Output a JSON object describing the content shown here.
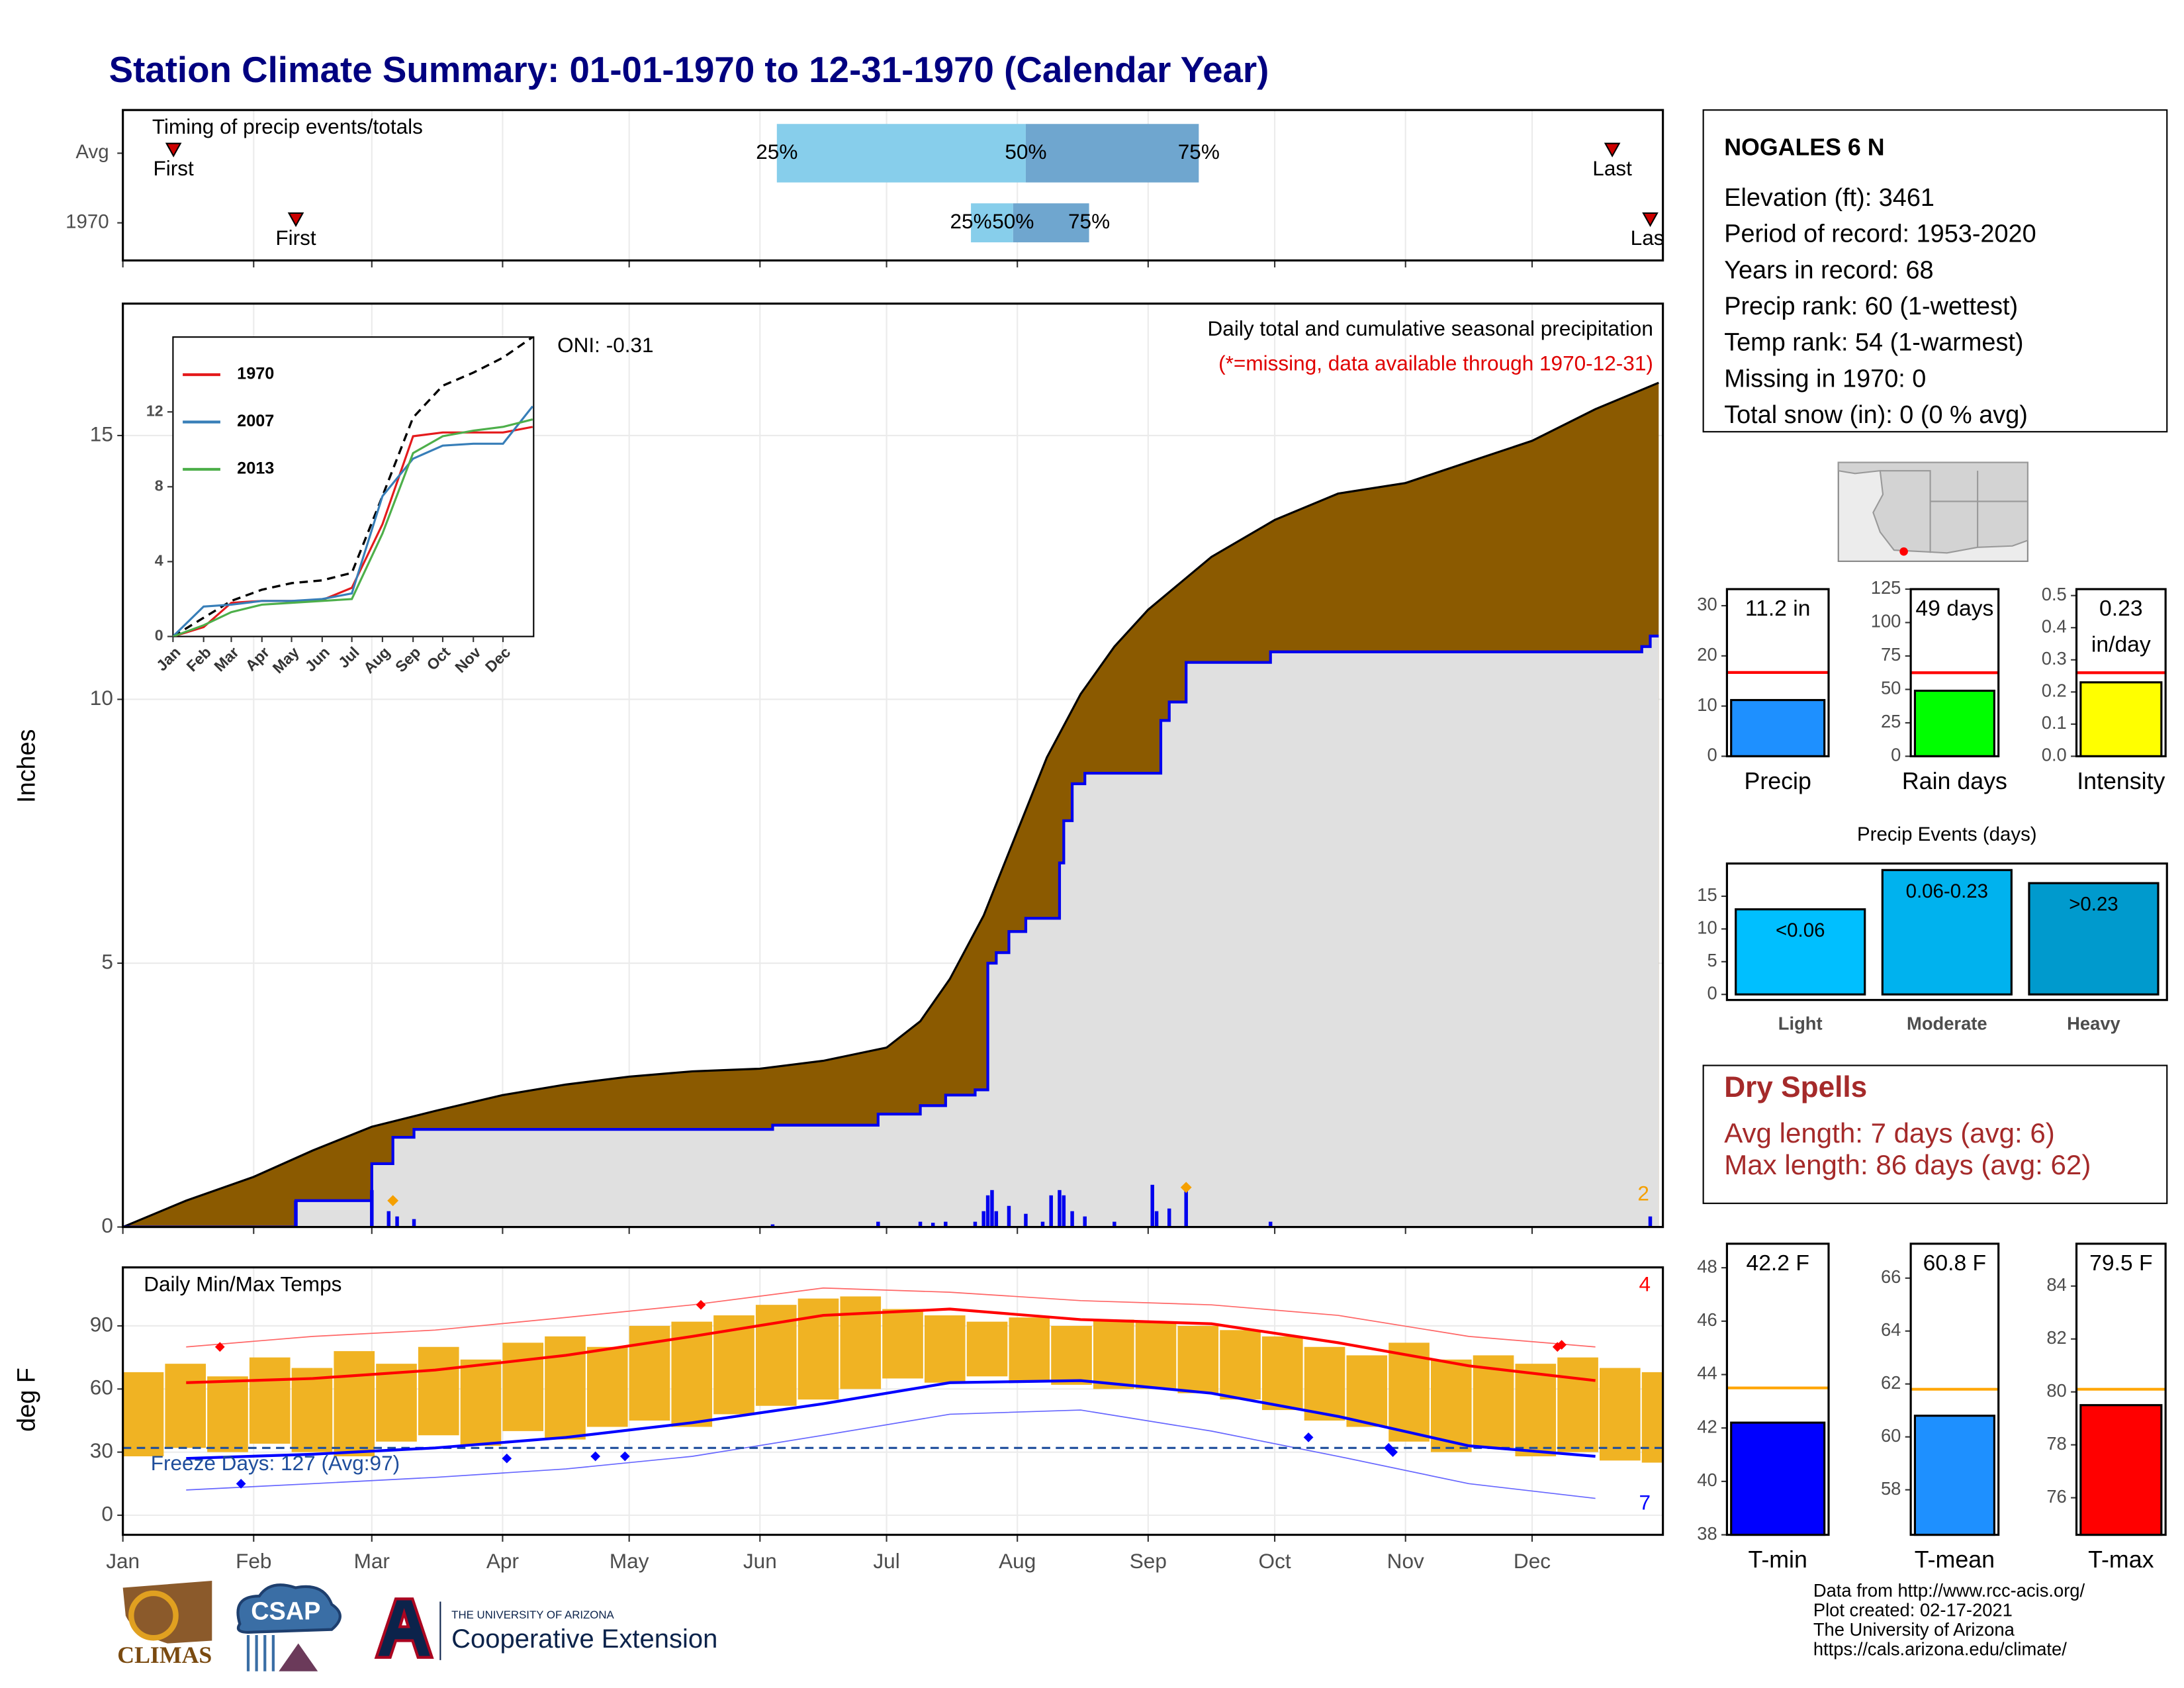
{
  "title": "Station Climate Summary: 01-01-1970 to 12-31-1970 (Calendar Year)",
  "chart_data": [
    {
      "type": "timeline",
      "title": "Timing of precip events/totals",
      "categories": [
        "Avg",
        "1970"
      ],
      "first": [
        13,
        42
      ],
      "last": [
        354,
        363
      ],
      "first_label": "First",
      "last_label": "Last",
      "quartiles": [
        [
          156,
          215,
          256
        ],
        [
          202,
          212,
          230
        ]
      ],
      "quartile_labels": [
        "25%",
        "50%",
        "75%"
      ],
      "colors": [
        "#87ceeb",
        "#6fa6cf"
      ],
      "marker_color": "#cc0000",
      "xlim": [
        1,
        366
      ],
      "xticks": [
        1,
        32,
        60,
        91,
        121,
        152,
        182,
        213,
        244,
        274,
        305,
        335
      ],
      "grid": true
    },
    {
      "type": "cumulative",
      "annotation": "Daily total and cumulative seasonal precipitation",
      "note": "(*=missing, data available through 1970-12-31)",
      "oni": "ONI: -0.31",
      "y_label": "Inches",
      "extreme_count": 2,
      "xlim": [
        1,
        366
      ],
      "xticks": [
        1,
        32,
        60,
        91,
        121,
        152,
        182,
        213,
        244,
        274,
        305,
        335
      ],
      "ylim": [
        0,
        17.5
      ],
      "yticks": [
        0,
        5,
        10,
        15
      ],
      "grid": true,
      "average": {
        "color": "#8b5a00",
        "x": [
          1,
          16,
          32,
          46,
          60,
          75,
          91,
          106,
          121,
          136,
          152,
          167,
          182,
          190,
          197,
          205,
          213,
          220,
          228,
          236,
          244,
          259,
          274,
          289,
          305,
          320,
          335,
          350,
          365
        ],
        "values": [
          0,
          0.5,
          0.95,
          1.45,
          1.9,
          2.2,
          2.5,
          2.7,
          2.85,
          2.95,
          3.0,
          3.15,
          3.4,
          3.9,
          4.7,
          5.9,
          7.5,
          8.9,
          10.1,
          11.0,
          11.7,
          12.7,
          13.4,
          13.9,
          14.1,
          14.5,
          14.9,
          15.5,
          16.0
        ]
      },
      "observed": {
        "color": "#0000ee",
        "fill": "#e0e0e0",
        "x": [
          1,
          42,
          60,
          65,
          70,
          155,
          180,
          190,
          196,
          203,
          206,
          208,
          211,
          215,
          223,
          224,
          226,
          229,
          247,
          249,
          253,
          273,
          361,
          363,
          365
        ],
        "values": [
          0,
          0.5,
          1.2,
          1.7,
          1.85,
          1.93,
          2.14,
          2.3,
          2.5,
          2.6,
          5.0,
          5.2,
          5.6,
          5.85,
          6.9,
          7.7,
          8.4,
          8.6,
          9.6,
          9.95,
          10.7,
          10.9,
          11.0,
          11.2,
          11.2
        ]
      },
      "daily": {
        "color": "#0000ee",
        "x": [
          42,
          60,
          64,
          66,
          70,
          155,
          180,
          190,
          193,
          196,
          203,
          205,
          206,
          207,
          208,
          211,
          215,
          219,
          221,
          223,
          224,
          226,
          229,
          236,
          245,
          246,
          249,
          253,
          273,
          363
        ],
        "values": [
          0.5,
          0.7,
          0.3,
          0.2,
          0.15,
          0.05,
          0.1,
          0.1,
          0.08,
          0.1,
          0.1,
          0.3,
          0.6,
          0.7,
          0.3,
          0.4,
          0.25,
          0.1,
          0.6,
          0.7,
          0.6,
          0.3,
          0.2,
          0.1,
          0.8,
          0.3,
          0.35,
          0.7,
          0.1,
          0.2
        ]
      },
      "extremes": {
        "color": "#f5a000",
        "x": [
          65,
          253
        ],
        "values": [
          0.5,
          0.75
        ]
      }
    },
    {
      "type": "line",
      "xlim": [
        1,
        366
      ],
      "xticks": [
        {
          "value": 1,
          "label": "Jan"
        },
        {
          "value": 32,
          "label": "Feb"
        },
        {
          "value": 60,
          "label": "Mar"
        },
        {
          "value": 91,
          "label": "Apr"
        },
        {
          "value": 121,
          "label": "May"
        },
        {
          "value": 152,
          "label": "Jun"
        },
        {
          "value": 182,
          "label": "Jul"
        },
        {
          "value": 213,
          "label": "Aug"
        },
        {
          "value": 244,
          "label": "Sep"
        },
        {
          "value": 274,
          "label": "Oct"
        },
        {
          "value": 305,
          "label": "Nov"
        },
        {
          "value": 335,
          "label": "Dec"
        }
      ],
      "ylim": [
        0,
        16
      ],
      "yticks": [
        0,
        4,
        8,
        12
      ],
      "x": [
        1,
        32,
        60,
        91,
        121,
        152,
        182,
        213,
        244,
        274,
        305,
        335,
        365
      ],
      "series": [
        {
          "name": "1970",
          "color": "#e41a1c",
          "values": [
            0,
            0.5,
            1.8,
            1.9,
            1.9,
            1.95,
            2.6,
            6.0,
            10.7,
            10.9,
            10.9,
            10.9,
            11.2
          ]
        },
        {
          "name": "2007",
          "color": "#377eb8",
          "values": [
            0,
            1.6,
            1.7,
            1.9,
            1.9,
            2.0,
            2.3,
            7.5,
            9.5,
            10.2,
            10.3,
            10.3,
            12.3
          ]
        },
        {
          "name": "2013",
          "color": "#4daf4a",
          "values": [
            0,
            0.6,
            1.3,
            1.7,
            1.8,
            1.9,
            2.0,
            5.5,
            9.8,
            10.7,
            11.0,
            11.2,
            11.6
          ]
        }
      ],
      "average": {
        "color": "#000000",
        "values": [
          0,
          1.0,
          1.9,
          2.5,
          2.85,
          3.0,
          3.4,
          7.5,
          11.7,
          13.4,
          14.1,
          14.9,
          16.0
        ]
      }
    },
    {
      "type": "range-bar",
      "title": "Daily Min/Max Temps",
      "y_label": "deg F",
      "freeze_label": "Freeze Days: 127 (Avg:97)",
      "freeze_line": 32,
      "freeze_color": "#1f4e9c",
      "record_high_count": 4,
      "record_low_count": 7,
      "xlim": [
        1,
        366
      ],
      "xticks": [
        {
          "value": 1,
          "label": "Jan"
        },
        {
          "value": 32,
          "label": "Feb"
        },
        {
          "value": 60,
          "label": "Mar"
        },
        {
          "value": 91,
          "label": "Apr"
        },
        {
          "value": 121,
          "label": "May"
        },
        {
          "value": 152,
          "label": "Jun"
        },
        {
          "value": 182,
          "label": "Jul"
        },
        {
          "value": 213,
          "label": "Aug"
        },
        {
          "value": 244,
          "label": "Sep"
        },
        {
          "value": 274,
          "label": "Oct"
        },
        {
          "value": 305,
          "label": "Nov"
        },
        {
          "value": 335,
          "label": "Dec"
        }
      ],
      "ylim": [
        -9.3,
        117.8
      ],
      "yticks": [
        0,
        30,
        60,
        90
      ],
      "grid": true,
      "bar_color": "#f0b323",
      "x": [
        1,
        11,
        21,
        31,
        41,
        51,
        61,
        71,
        81,
        91,
        101,
        111,
        121,
        131,
        141,
        151,
        161,
        171,
        181,
        191,
        201,
        211,
        221,
        231,
        241,
        251,
        261,
        271,
        281,
        291,
        301,
        311,
        321,
        331,
        341,
        351,
        361
      ],
      "max": [
        68,
        72,
        66,
        75,
        70,
        78,
        72,
        80,
        74,
        82,
        85,
        80,
        90,
        92,
        95,
        100,
        103,
        104,
        98,
        95,
        92,
        94,
        90,
        93,
        92,
        90,
        88,
        85,
        80,
        76,
        82,
        74,
        76,
        72,
        75,
        70,
        68
      ],
      "min": [
        28,
        32,
        30,
        34,
        30,
        28,
        35,
        38,
        33,
        40,
        36,
        42,
        45,
        42,
        48,
        52,
        55,
        60,
        65,
        63,
        66,
        64,
        62,
        60,
        60,
        58,
        55,
        50,
        45,
        42,
        35,
        30,
        32,
        28,
        30,
        26,
        25
      ],
      "normals": {
        "x": [
          16,
          46,
          75,
          106,
          136,
          167,
          197,
          228,
          259,
          289,
          320,
          350
        ],
        "max": [
          63,
          65,
          69,
          76,
          85,
          95,
          98,
          93,
          91,
          82,
          71,
          64
        ],
        "min": [
          27,
          29,
          32,
          37,
          44,
          53,
          63,
          64,
          58,
          47,
          33,
          28
        ],
        "record_max": [
          80,
          85,
          88,
          94,
          100,
          108,
          106,
          102,
          100,
          95,
          85,
          80
        ],
        "record_min": [
          12,
          15,
          18,
          22,
          28,
          38,
          48,
          50,
          40,
          28,
          15,
          8
        ]
      },
      "record_highs": {
        "x": [
          24,
          138,
          341,
          342
        ],
        "values": [
          80,
          100,
          80,
          81
        ]
      },
      "record_lows": {
        "x": [
          29,
          92,
          113,
          120,
          282,
          301,
          302
        ],
        "values": [
          15,
          27,
          28,
          28,
          37,
          32,
          30
        ]
      }
    },
    {
      "type": "bar",
      "categories": [
        "Precip"
      ],
      "values": [
        11.2
      ],
      "value_labels": [
        "11.2 in"
      ],
      "average": 16.7,
      "ylim": [
        0,
        33.3
      ],
      "yticks": [
        0,
        10,
        20,
        30
      ],
      "color": "#1e90ff",
      "avg_color": "#ff0000"
    },
    {
      "type": "bar",
      "categories": [
        "Rain days"
      ],
      "values": [
        49
      ],
      "value_labels": [
        "49 days"
      ],
      "average": 62.5,
      "ylim": [
        0,
        125
      ],
      "yticks": [
        0,
        25,
        50,
        75,
        100,
        125
      ],
      "color": "#00ff00",
      "avg_color": "#ff0000"
    },
    {
      "type": "bar",
      "categories": [
        "Intensity"
      ],
      "values": [
        0.23
      ],
      "value_labels": [
        "0.23 in/day"
      ],
      "average": 0.26,
      "ylim": [
        0,
        0.52
      ],
      "yticks": [
        {
          "value": 0,
          "label": "0.0"
        },
        0.1,
        0.2,
        0.3,
        0.4,
        0.5
      ],
      "color": "#ffff00",
      "avg_color": "#ff0000"
    },
    {
      "type": "bar",
      "title": "Precip Events (days)",
      "categories": [
        "Light",
        "Moderate",
        "Heavy"
      ],
      "values": [
        13,
        19,
        17
      ],
      "bin_labels": [
        "<0.06",
        "0.06-0.23",
        ">0.23"
      ],
      "ylim": [
        0,
        20
      ],
      "yticks": [
        0,
        5,
        10,
        15
      ],
      "colors": [
        "#00bfff",
        "#00b2ee",
        "#009acd"
      ]
    },
    {
      "type": "bar",
      "categories": [
        "T-min"
      ],
      "values": [
        42.2
      ],
      "value_labels": [
        "42.2 F"
      ],
      "average": 43.5,
      "ylim": [
        38,
        48.9
      ],
      "yticks": [
        38,
        40,
        42,
        44,
        46,
        48
      ],
      "color": "#0000ff",
      "avg_color": "#ffa500"
    },
    {
      "type": "bar",
      "categories": [
        "T-mean"
      ],
      "values": [
        60.8
      ],
      "value_labels": [
        "60.8 F"
      ],
      "average": 61.8,
      "ylim": [
        56.3,
        67.3
      ],
      "yticks": [
        58,
        60,
        62,
        64,
        66
      ],
      "color": "#1e90ff",
      "avg_color": "#ffa500"
    },
    {
      "type": "bar",
      "categories": [
        "T-max"
      ],
      "values": [
        79.5
      ],
      "value_labels": [
        "79.5 F"
      ],
      "average": 80.1,
      "ylim": [
        74.6,
        85.6
      ],
      "yticks": [
        76,
        78,
        80,
        82,
        84
      ],
      "color": "#ff0000",
      "avg_color": "#ffa500"
    }
  ],
  "station": {
    "name": "NOGALES 6 N",
    "lines": [
      "Elevation (ft): 3461",
      "Period of record: 1953-2020",
      "Years in record: 68",
      "Precip rank: 60 (1-wettest)",
      "Temp rank: 54 (1-warmest)",
      "Missing in 1970: 0",
      "Total snow (in): 0 (0 % avg)"
    ]
  },
  "dry_spells": {
    "title": "Dry Spells",
    "lines": [
      "Avg length: 7 days (avg: 6)",
      "Max length: 86 days (avg: 62)"
    ]
  },
  "footer": {
    "logos": [
      "CLIMAS",
      "CSAP",
      "THE UNIVERSITY OF ARIZONA",
      "Cooperative Extension"
    ],
    "credits": [
      "Data from http://www.rcc-acis.org/",
      "Plot created: 02-17-2021",
      "The University of Arizona",
      "https://cals.arizona.edu/climate/"
    ]
  }
}
